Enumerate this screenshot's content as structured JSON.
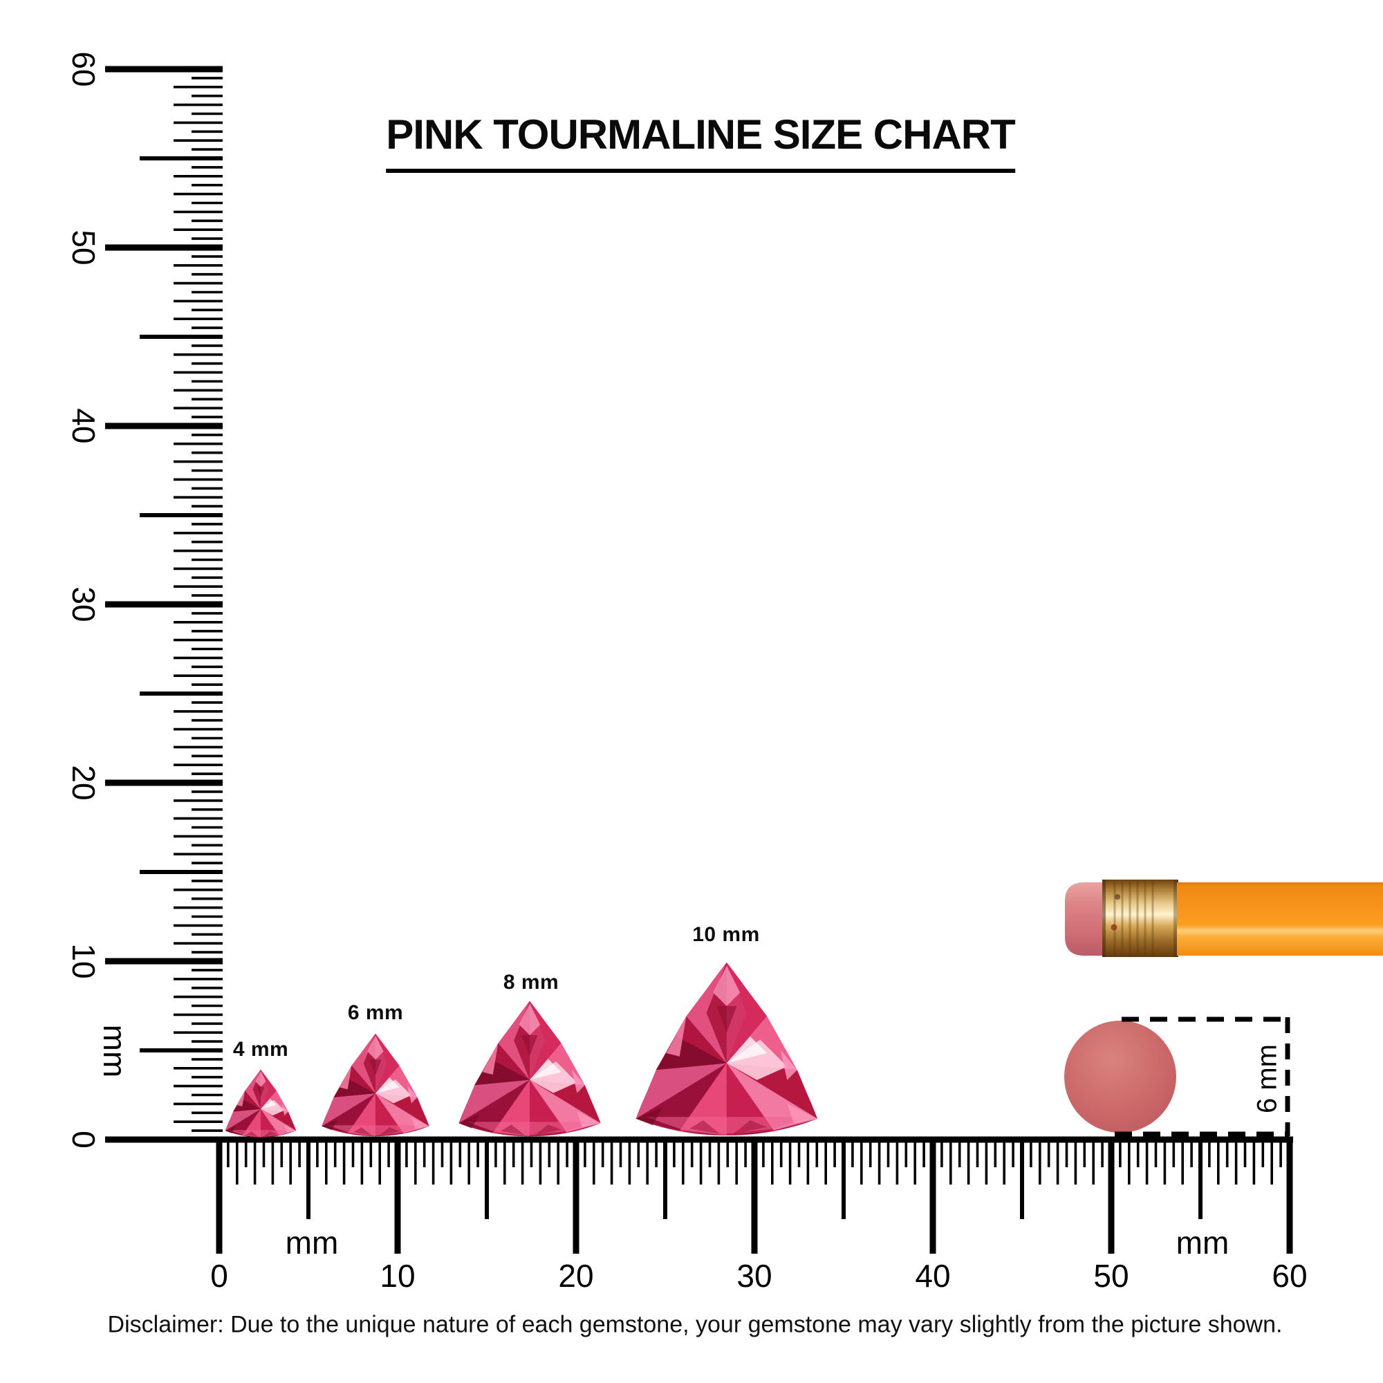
{
  "title": "PINK TOURMALINE SIZE CHART",
  "disclaimer": "Disclaimer: Due to the unique nature of each gemstone, your gemstone may vary slightly from the picture shown.",
  "rulers": {
    "horizontal": {
      "min_mm": 0,
      "max_mm": 60,
      "minor_step_mm": 0.5,
      "label_step_mm": 10,
      "labels": [
        "0",
        "10",
        "20",
        "30",
        "40",
        "50",
        "60"
      ],
      "unit_label_left": "mm",
      "unit_label_right": "mm"
    },
    "vertical": {
      "min_mm": 0,
      "max_mm": 60,
      "minor_step_mm": 0.5,
      "label_step_mm": 10,
      "labels": [
        "60",
        "50",
        "40",
        "30",
        "20",
        "10",
        "0"
      ],
      "unit_label": "mm"
    }
  },
  "gems": [
    {
      "label": "4 mm",
      "size_mm": 4
    },
    {
      "label": "6 mm",
      "size_mm": 6
    },
    {
      "label": "8 mm",
      "size_mm": 8
    },
    {
      "label": "10 mm",
      "size_mm": 10
    }
  ],
  "reference_object": {
    "dimension_label": "6 mm",
    "diameter_mm": 6
  },
  "colors": {
    "ink": "#000000",
    "background": "#ffffff",
    "gem_pink": "#d63a68",
    "gem_deep": "#8f0e32",
    "gem_light": "#ff9ab8",
    "eraser_top_circle": "#cd6b6b",
    "pencil_body_orange": "#f8941c",
    "ferrule_gold": "#d8a958",
    "eraser_pink": "#d4767a"
  },
  "chart_data": {
    "type": "table",
    "title": "PINK TOURMALINE SIZE CHART",
    "unit": "mm",
    "gem_sizes_mm": [
      4,
      6,
      8,
      10
    ],
    "ruler_range_mm": [
      0,
      60
    ],
    "reference_diameter_mm": 6
  }
}
